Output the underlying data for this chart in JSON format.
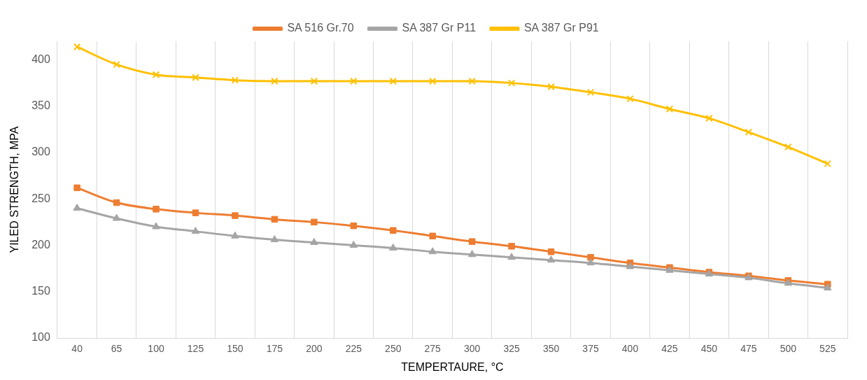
{
  "chart_data": {
    "type": "line",
    "xlabel": "TEMPERTAURE, °C",
    "ylabel": "YILED STRENGTH, MPA",
    "categories": [
      "40",
      "65",
      "100",
      "125",
      "150",
      "175",
      "200",
      "225",
      "250",
      "275",
      "300",
      "325",
      "350",
      "375",
      "400",
      "425",
      "450",
      "475",
      "500",
      "525"
    ],
    "ylim": [
      100,
      420
    ],
    "yticks": [
      100,
      150,
      200,
      250,
      300,
      350,
      400
    ],
    "grid": "x",
    "legend": "top",
    "series": [
      {
        "name": "SA 516 Gr.70",
        "color": "#ed7d31",
        "marker": "square",
        "values": [
          262,
          246,
          239,
          235,
          232,
          228,
          225,
          221,
          216,
          210,
          204,
          199,
          193,
          187,
          181,
          176,
          171,
          167,
          162,
          158
        ]
      },
      {
        "name": "SA 387 Gr P11",
        "color": "#a5a5a5",
        "marker": "triangle",
        "values": [
          240,
          229,
          220,
          215,
          210,
          206,
          203,
          200,
          197,
          193,
          190,
          187,
          184,
          181,
          177,
          173,
          169,
          165,
          159,
          154
        ]
      },
      {
        "name": "SA 387 Gr P91",
        "color": "#ffc000",
        "marker": "cross",
        "values": [
          414,
          395,
          384,
          381,
          378,
          377,
          377,
          377,
          377,
          377,
          377,
          375,
          371,
          365,
          358,
          347,
          337,
          322,
          306,
          288
        ]
      }
    ]
  }
}
